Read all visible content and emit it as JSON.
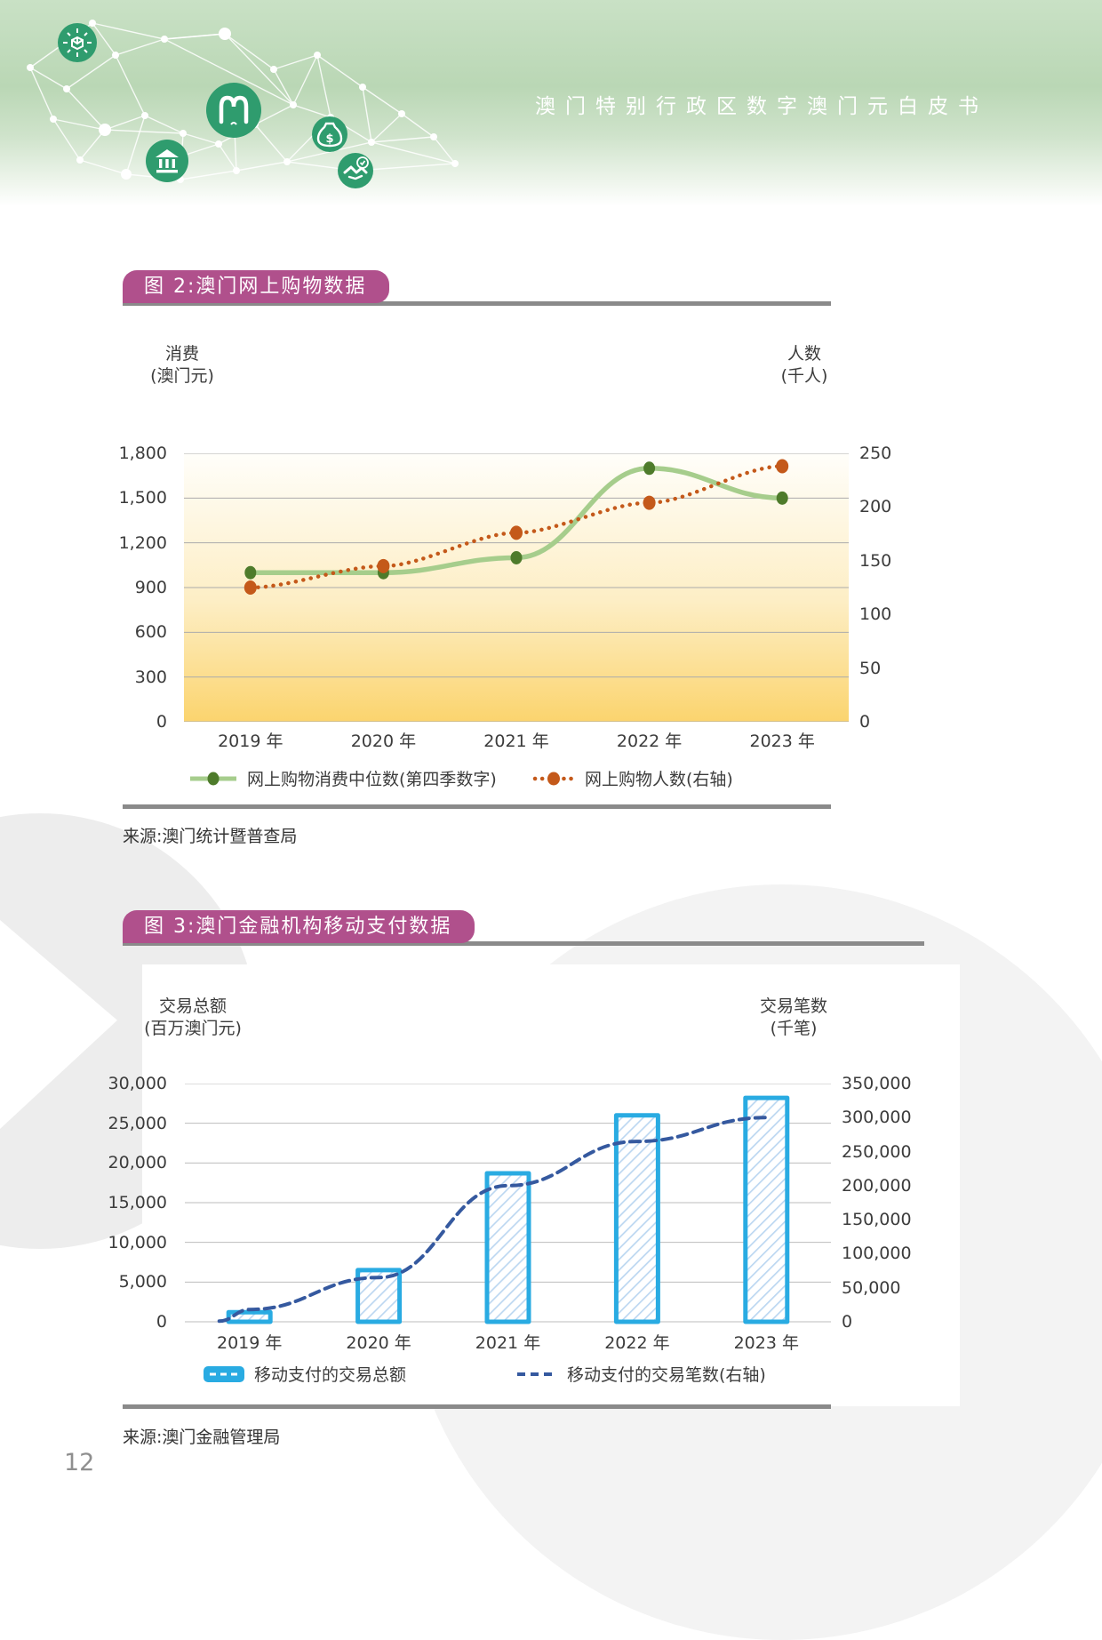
{
  "header": {
    "title": "澳门特别行政区数字澳门元白皮书"
  },
  "page": {
    "number": "12"
  },
  "colors": {
    "badge_magenta": "#b0508c",
    "rule_gray": "#8a8a8a",
    "header_badge_green": "#2f9c6e",
    "fig2_line_green": "#a6cd8c",
    "fig2_marker_green": "#4e7b2b",
    "fig2_line_orange": "#c4591a",
    "fig3_bar_border_cyan": "#29abe2",
    "fig3_bar_hatch_blue": "#bcd7f1",
    "fig3_line_navy": "#35599f",
    "plot_gradient_top": "#fffefa",
    "plot_gradient_mid": "#fdeec5",
    "plot_gradient_bottom": "#fbd46e",
    "grid_gray": "#ababab"
  },
  "chart_data": [
    {
      "id": "figure-2",
      "type": "line",
      "title": "图 2:澳门网上购物数据",
      "source": "来源:澳门统计暨普查局",
      "categories": [
        "2019 年",
        "2020 年",
        "2021 年",
        "2022 年",
        "2023 年"
      ],
      "series": [
        {
          "name": "网上购物消费中位数(第四季数字)",
          "axis": "left",
          "style": "solid",
          "values": [
            1000,
            1000,
            1100,
            1700,
            1500
          ]
        },
        {
          "name": "网上购物人数(右轴)",
          "axis": "right",
          "style": "dotted",
          "values": [
            125,
            145,
            176,
            204,
            238
          ]
        }
      ],
      "left_axis": {
        "title_lines": [
          "消费",
          "(澳门元)"
        ],
        "min": 0,
        "max": 1800,
        "ticks": [
          "1,800",
          "1,500",
          "1,200",
          "900",
          "600",
          "300",
          "0"
        ]
      },
      "right_axis": {
        "title_lines": [
          "人数",
          "(千人)"
        ],
        "min": 0,
        "max": 250,
        "ticks": [
          "250",
          "200",
          "150",
          "100",
          "50",
          "0"
        ]
      },
      "grid": true,
      "legend_position": "bottom"
    },
    {
      "id": "figure-3",
      "type": "bar+line",
      "title": "图 3:澳门金融机构移动支付数据",
      "source": "来源:澳门金融管理局",
      "categories": [
        "2019 年",
        "2020 年",
        "2021 年",
        "2022 年",
        "2023 年"
      ],
      "series": [
        {
          "name": "移动支付的交易总额",
          "chart": "bar",
          "axis": "left",
          "values": [
            1200,
            6500,
            18700,
            26000,
            28200
          ]
        },
        {
          "name": "移动支付的交易笔数(右轴)",
          "chart": "line",
          "axis": "right",
          "style": "dashed",
          "values": [
            18000,
            65000,
            200000,
            265000,
            300000
          ]
        }
      ],
      "left_axis": {
        "title_lines": [
          "交易总额",
          "(百万澳门元)"
        ],
        "min": 0,
        "max": 30000,
        "ticks": [
          "30,000",
          "25,000",
          "20,000",
          "15,000",
          "10,000",
          "5,000",
          "0"
        ]
      },
      "right_axis": {
        "title_lines": [
          "交易笔数",
          "(千笔)"
        ],
        "min": 0,
        "max": 350000,
        "ticks": [
          "350,000",
          "300,000",
          "250,000",
          "200,000",
          "150,000",
          "100,000",
          "50,000",
          "0"
        ]
      },
      "grid": true,
      "legend_position": "bottom"
    }
  ]
}
